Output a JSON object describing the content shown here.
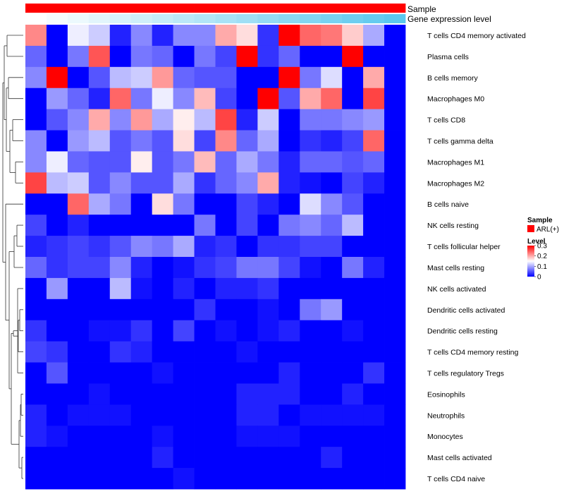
{
  "chart_data": {
    "type": "heatmap",
    "annotations": [
      {
        "name": "Sample",
        "color": "#ff0000"
      },
      {
        "name": "Gene expression level",
        "gradient": [
          "#ffffff",
          "#5bc8ee"
        ]
      }
    ],
    "rows": [
      "T cells CD4 memory activated",
      "Plasma cells",
      "B cells memory",
      "Macrophages M0",
      "T cells CD8",
      "T cells gamma delta",
      "Macrophages M1",
      "Macrophages M2",
      "B cells naive",
      "NK cells resting",
      "T cells follicular helper",
      "Mast cells resting",
      "NK cells activated",
      "Dendritic cells activated",
      "Dendritic cells resting",
      "T cells CD4 memory resting",
      "T cells regulatory  Tregs",
      "Eosinophils",
      "Neutrophils",
      "Monocytes",
      "Mast cells activated",
      "T cells CD4 naive"
    ],
    "n_columns": 18,
    "values": [
      [
        0.22,
        0.0,
        0.14,
        0.12,
        0.02,
        0.08,
        0.02,
        0.08,
        0.08,
        0.2,
        0.17,
        0.03,
        0.3,
        0.24,
        0.23,
        0.18,
        0.1,
        null
      ],
      [
        0.06,
        0.0,
        0.07,
        0.25,
        0.0,
        0.07,
        0.06,
        0.0,
        0.07,
        0.04,
        0.3,
        0.03,
        0.06,
        0.0,
        0.0,
        0.3,
        0.0,
        null
      ],
      [
        0.08,
        0.3,
        0.0,
        0.05,
        0.11,
        0.12,
        0.21,
        0.06,
        0.05,
        0.05,
        0.0,
        0.0,
        0.3,
        0.07,
        0.13,
        0.0,
        0.2,
        null
      ],
      [
        0.0,
        0.09,
        0.06,
        0.02,
        0.24,
        0.07,
        0.14,
        0.08,
        0.19,
        0.04,
        0.0,
        0.3,
        0.05,
        0.2,
        0.24,
        0.0,
        0.26,
        null
      ],
      [
        0.0,
        0.05,
        0.08,
        0.2,
        0.08,
        0.21,
        0.1,
        0.16,
        0.11,
        0.26,
        0.02,
        0.12,
        0.0,
        0.07,
        0.07,
        0.08,
        0.09,
        null
      ],
      [
        0.08,
        0.0,
        0.09,
        0.11,
        0.05,
        0.07,
        0.05,
        0.17,
        0.04,
        0.22,
        0.06,
        0.1,
        0.0,
        0.03,
        0.02,
        0.04,
        0.24,
        null
      ],
      [
        0.08,
        0.14,
        0.06,
        0.05,
        0.05,
        0.16,
        0.05,
        0.07,
        0.19,
        0.06,
        0.1,
        0.07,
        0.02,
        0.06,
        0.06,
        0.05,
        0.06,
        null
      ],
      [
        0.26,
        0.11,
        0.12,
        0.05,
        0.08,
        0.05,
        0.05,
        0.1,
        0.03,
        0.06,
        0.08,
        0.2,
        0.02,
        0.01,
        0.0,
        0.04,
        0.02,
        null
      ],
      [
        0.0,
        0.0,
        0.24,
        0.1,
        0.07,
        0.0,
        0.17,
        0.07,
        0.0,
        0.0,
        0.04,
        0.02,
        0.0,
        0.13,
        0.08,
        0.05,
        0.0,
        null
      ],
      [
        0.04,
        0.0,
        0.02,
        0.0,
        0.0,
        0.0,
        0.0,
        0.0,
        0.07,
        0.0,
        0.04,
        0.0,
        0.07,
        0.08,
        0.06,
        0.11,
        0.0,
        null
      ],
      [
        0.02,
        0.03,
        0.04,
        0.03,
        0.05,
        0.08,
        0.07,
        0.1,
        0.02,
        0.03,
        0.0,
        0.03,
        0.03,
        0.04,
        0.04,
        0.0,
        0.0,
        null
      ],
      [
        0.06,
        0.03,
        0.04,
        0.04,
        0.08,
        0.02,
        0.0,
        0.01,
        0.03,
        0.04,
        0.07,
        0.07,
        0.04,
        0.01,
        0.0,
        0.07,
        0.02,
        null
      ],
      [
        0.0,
        0.09,
        0.0,
        0.0,
        0.11,
        0.01,
        0.0,
        0.02,
        0.0,
        0.02,
        0.02,
        0.03,
        0.0,
        0.0,
        0.0,
        0.0,
        0.0,
        null
      ],
      [
        0.0,
        0.0,
        0.0,
        0.0,
        0.0,
        0.0,
        0.0,
        0.0,
        0.03,
        0.0,
        0.0,
        0.01,
        0.0,
        0.07,
        0.09,
        0.0,
        0.0,
        null
      ],
      [
        0.03,
        0.0,
        0.0,
        0.01,
        0.01,
        0.03,
        0.0,
        0.04,
        0.0,
        0.01,
        0.0,
        0.01,
        0.02,
        0.0,
        0.0,
        0.01,
        0.0,
        null
      ],
      [
        0.04,
        0.03,
        0.0,
        0.0,
        0.03,
        0.02,
        0.0,
        0.0,
        0.0,
        0.0,
        0.01,
        0.0,
        0.0,
        0.0,
        0.0,
        0.0,
        0.0,
        null
      ],
      [
        0.0,
        0.05,
        0.0,
        0.0,
        0.0,
        0.0,
        0.01,
        0.0,
        0.0,
        0.0,
        0.0,
        0.0,
        0.02,
        0.0,
        0.0,
        0.0,
        0.03,
        null
      ],
      [
        0.0,
        0.0,
        0.0,
        0.01,
        0.0,
        0.0,
        0.0,
        0.0,
        0.0,
        0.0,
        0.02,
        0.02,
        0.02,
        0.0,
        0.0,
        0.02,
        0.0,
        null
      ],
      [
        0.02,
        0.0,
        0.01,
        0.01,
        0.01,
        0.0,
        0.0,
        0.0,
        0.0,
        0.0,
        0.02,
        0.02,
        0.0,
        0.01,
        0.01,
        0.01,
        0.01,
        null
      ],
      [
        0.02,
        0.01,
        0.0,
        0.0,
        0.0,
        0.0,
        0.01,
        0.0,
        0.0,
        0.0,
        0.01,
        0.01,
        0.01,
        0.0,
        0.0,
        0.0,
        0.0,
        null
      ],
      [
        0.0,
        0.0,
        0.0,
        0.0,
        0.0,
        0.0,
        0.02,
        0.0,
        0.0,
        0.0,
        0.0,
        0.0,
        0.0,
        0.0,
        0.02,
        0.0,
        0.0,
        null
      ],
      [
        0.0,
        0.0,
        0.0,
        0.0,
        0.0,
        0.0,
        0.0,
        0.01,
        0.0,
        0.0,
        0.0,
        0.0,
        0.0,
        0.0,
        0.0,
        0.0,
        0.0,
        null
      ]
    ],
    "legend": {
      "sample_title": "Sample",
      "sample_items": [
        {
          "label": "ARL(+)",
          "color": "#ff0000"
        }
      ],
      "level_title": "Level",
      "level_ticks": [
        "0.3",
        "0.2",
        "0.1",
        "0"
      ],
      "level_tick_values": [
        0.3,
        0.2,
        0.1,
        0
      ],
      "range": [
        0,
        0.3
      ],
      "colors": {
        "low": "#0000ff",
        "mid": "#ffffff",
        "high": "#ff0000"
      }
    },
    "dendrogram": "row",
    "grid": false
  }
}
